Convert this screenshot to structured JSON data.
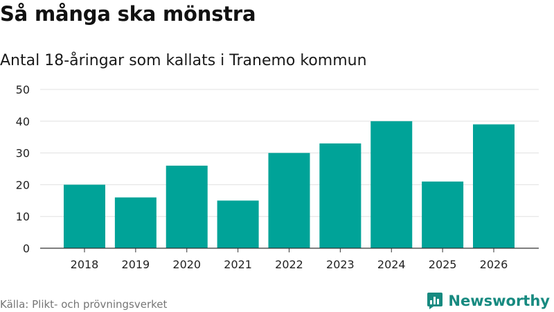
{
  "title": "Så många ska mönstra",
  "subtitle": "Antal 18-åringar som kallats i Tranemo kommun",
  "source": "Källa: Plikt- och prövningsverket",
  "brand": "Newsworthy",
  "colors": {
    "bar": "#00a398",
    "grid": "#e0e0e0",
    "axis": "#333333",
    "tick_text": "#222222",
    "source_text": "#757575",
    "brand": "#178a80"
  },
  "icons": {
    "brand_logo": "newsworthy-logo-icon"
  },
  "chart_data": {
    "type": "bar",
    "categories": [
      "2018",
      "2019",
      "2020",
      "2021",
      "2022",
      "2023",
      "2024",
      "2025",
      "2026"
    ],
    "values": [
      20,
      16,
      26,
      15,
      30,
      33,
      40,
      21,
      39
    ],
    "ylim": [
      0,
      50
    ],
    "yticks": [
      0,
      10,
      20,
      30,
      40,
      50
    ],
    "grid": true,
    "xlabel": "",
    "ylabel": ""
  }
}
